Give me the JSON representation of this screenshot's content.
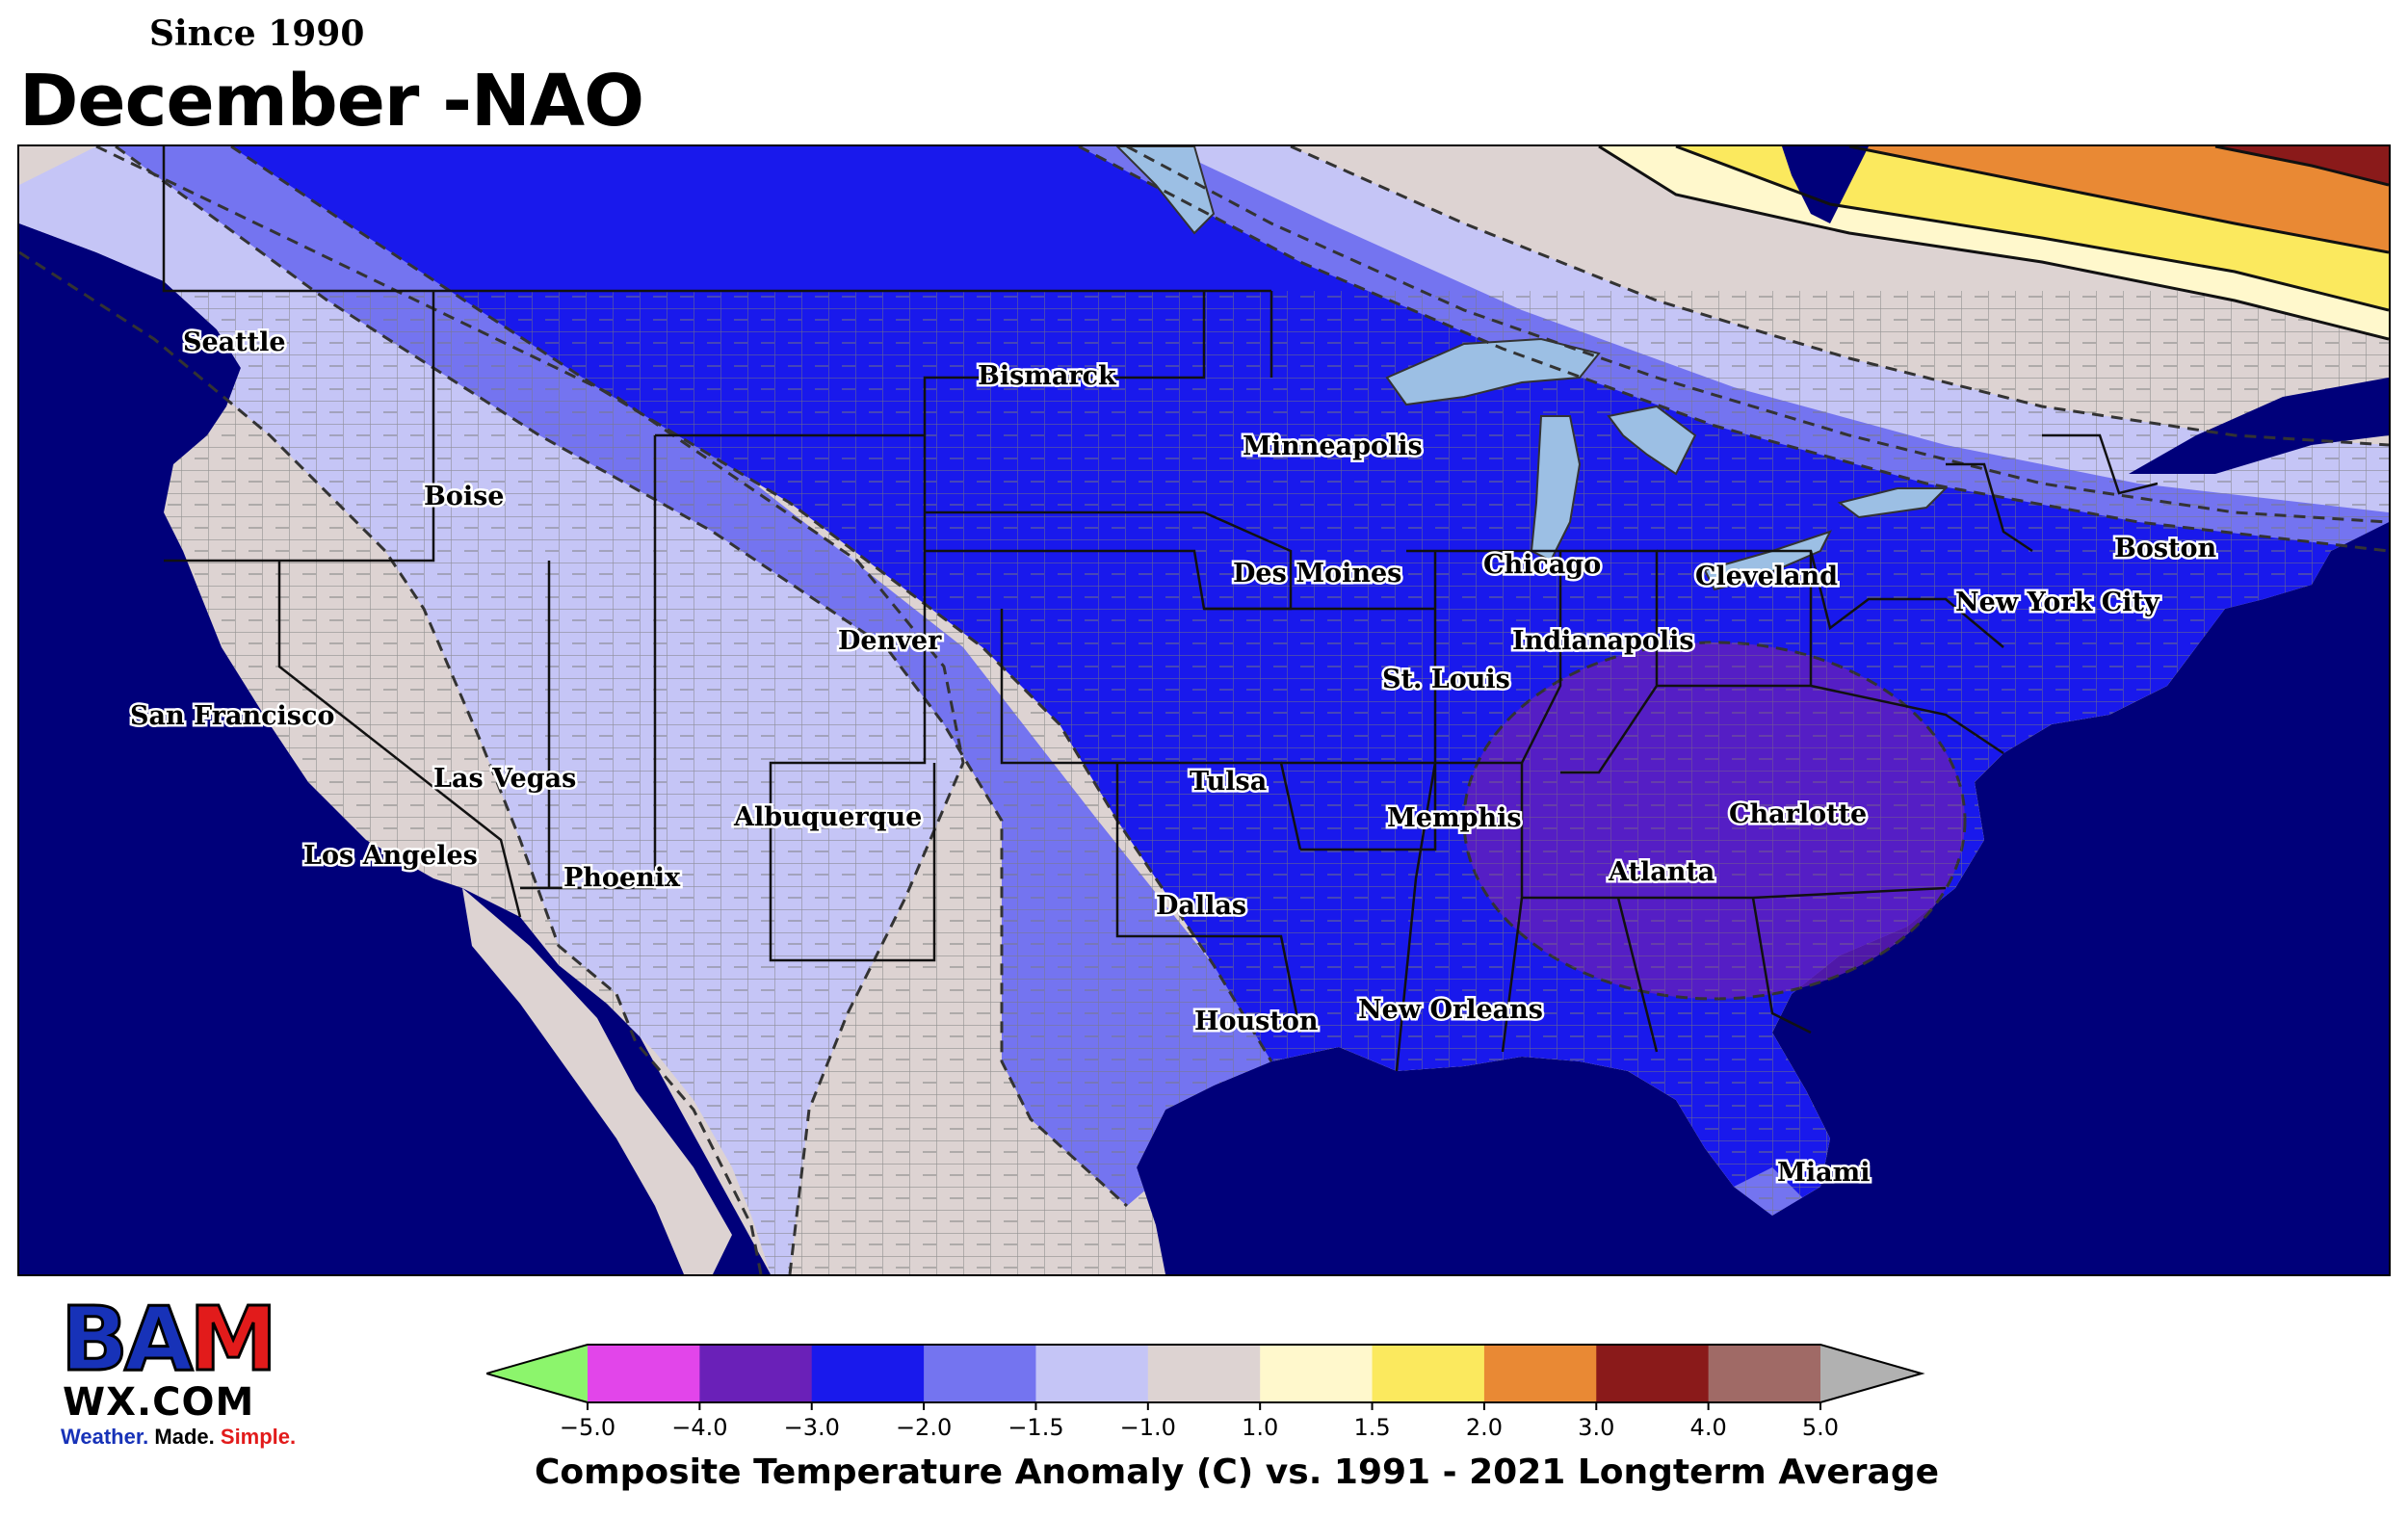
{
  "header": {
    "subtitle": "Since 1990",
    "title": "December -NAO"
  },
  "map": {
    "region": "Continental United States",
    "colors": {
      "ocean": "#00007a",
      "land_neutral": "#ddd3d2",
      "band_-1.5_-1.0": "#c5c5f6",
      "band_-2.0_-1.5": "#7474f0",
      "band_-3.0_-2.0": "#1919ec",
      "band_-4.0_-3.0": "#6a20b8",
      "band_1.0_1.5": "#fff8cc",
      "band_1.5_2.0": "#fbe95e",
      "band_2.0_3.0": "#e98934",
      "band_3.0_4.0": "#8a1a1a",
      "lakes": "#9cbfe4"
    },
    "cities": [
      {
        "name": "Seattle"
      },
      {
        "name": "Boise"
      },
      {
        "name": "Bismarck"
      },
      {
        "name": "Minneapolis"
      },
      {
        "name": "San Francisco"
      },
      {
        "name": "Las Vegas"
      },
      {
        "name": "Los Angeles"
      },
      {
        "name": "Phoenix"
      },
      {
        "name": "Denver"
      },
      {
        "name": "Albuquerque"
      },
      {
        "name": "Des Moines"
      },
      {
        "name": "Chicago"
      },
      {
        "name": "Cleveland"
      },
      {
        "name": "Boston"
      },
      {
        "name": "New York City"
      },
      {
        "name": "Indianapolis"
      },
      {
        "name": "St. Louis"
      },
      {
        "name": "Tulsa"
      },
      {
        "name": "Memphis"
      },
      {
        "name": "Charlotte"
      },
      {
        "name": "Atlanta"
      },
      {
        "name": "Dallas"
      },
      {
        "name": "Houston"
      },
      {
        "name": "New Orleans"
      },
      {
        "name": "Miami"
      }
    ]
  },
  "logo": {
    "letters_left": "BA",
    "letters_right": "M",
    "wx": "WX.COM",
    "tag_1": "Weather.",
    "tag_2": " Made.",
    "tag_3": " Simple."
  },
  "colorbar": {
    "label": "Composite Temperature Anomaly (C) vs. 1991 - 2021 Longterm Average",
    "ticks": [
      "−5.0",
      "−4.0",
      "−3.0",
      "−2.0",
      "−1.5",
      "−1.0",
      "1.0",
      "1.5",
      "2.0",
      "3.0",
      "4.0",
      "5.0"
    ],
    "colors": [
      "#8cf56c",
      "#e245ea",
      "#6a20b8",
      "#1919ec",
      "#7474f0",
      "#c5c5f6",
      "#ddd3d2",
      "#fff8cc",
      "#fbe95e",
      "#e98934",
      "#8a1a1a",
      "#a06a66",
      "#b1b1b1"
    ]
  }
}
